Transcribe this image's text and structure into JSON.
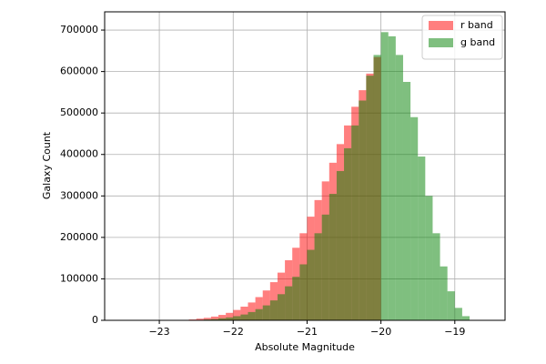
{
  "chart_data": {
    "type": "histogram",
    "xlabel": "Absolute Magnitude",
    "ylabel": "Galaxy Count",
    "bins": [
      -23.0,
      -22.9,
      -22.8,
      -22.7,
      -22.6,
      -22.5,
      -22.4,
      -22.3,
      -22.2,
      -22.1,
      -22.0,
      -21.9,
      -21.8,
      -21.7,
      -21.6,
      -21.5,
      -21.4,
      -21.3,
      -21.2,
      -21.1,
      -21.0,
      -20.9,
      -20.8,
      -20.7,
      -20.6,
      -20.5,
      -20.4,
      -20.3,
      -20.2,
      -20.1,
      -20.0,
      -19.9,
      -19.8,
      -19.7,
      -19.6,
      -19.5,
      -19.4,
      -19.3,
      -19.2,
      -19.1,
      -19.0,
      -18.9,
      -18.8
    ],
    "series": [
      {
        "name": "r band",
        "color": "#ff0000",
        "alpha": 0.5,
        "values": [
          0,
          0,
          500,
          1000,
          2000,
          4000,
          6000,
          9000,
          13000,
          18000,
          25000,
          33000,
          43000,
          56000,
          72000,
          92000,
          115000,
          145000,
          175000,
          210000,
          250000,
          290000,
          335000,
          380000,
          425000,
          470000,
          515000,
          555000,
          595000,
          635000,
          0,
          0,
          0,
          0,
          0,
          0,
          0,
          0,
          0,
          0,
          0,
          0
        ]
      },
      {
        "name": "g band",
        "color": "#008000",
        "alpha": 0.5,
        "values": [
          0,
          0,
          0,
          0,
          500,
          1000,
          2000,
          3000,
          5000,
          7000,
          10000,
          14000,
          20000,
          27000,
          36000,
          48000,
          63000,
          82000,
          105000,
          135000,
          170000,
          210000,
          255000,
          305000,
          360000,
          415000,
          470000,
          530000,
          590000,
          640000,
          695000,
          685000,
          640000,
          575000,
          490000,
          395000,
          300000,
          210000,
          130000,
          70000,
          30000,
          10000
        ]
      }
    ],
    "xlim": [
      -23.74,
      -18.32
    ],
    "ylim": [
      0,
      744000
    ],
    "xticks": [
      {
        "value": -23,
        "label": "−23"
      },
      {
        "value": -22,
        "label": "−22"
      },
      {
        "value": -21,
        "label": "−21"
      },
      {
        "value": -20,
        "label": "−20"
      },
      {
        "value": -19,
        "label": "−19"
      }
    ],
    "yticks": [
      0,
      100000,
      200000,
      300000,
      400000,
      500000,
      600000,
      700000
    ],
    "grid": true,
    "legend": "upper right"
  }
}
